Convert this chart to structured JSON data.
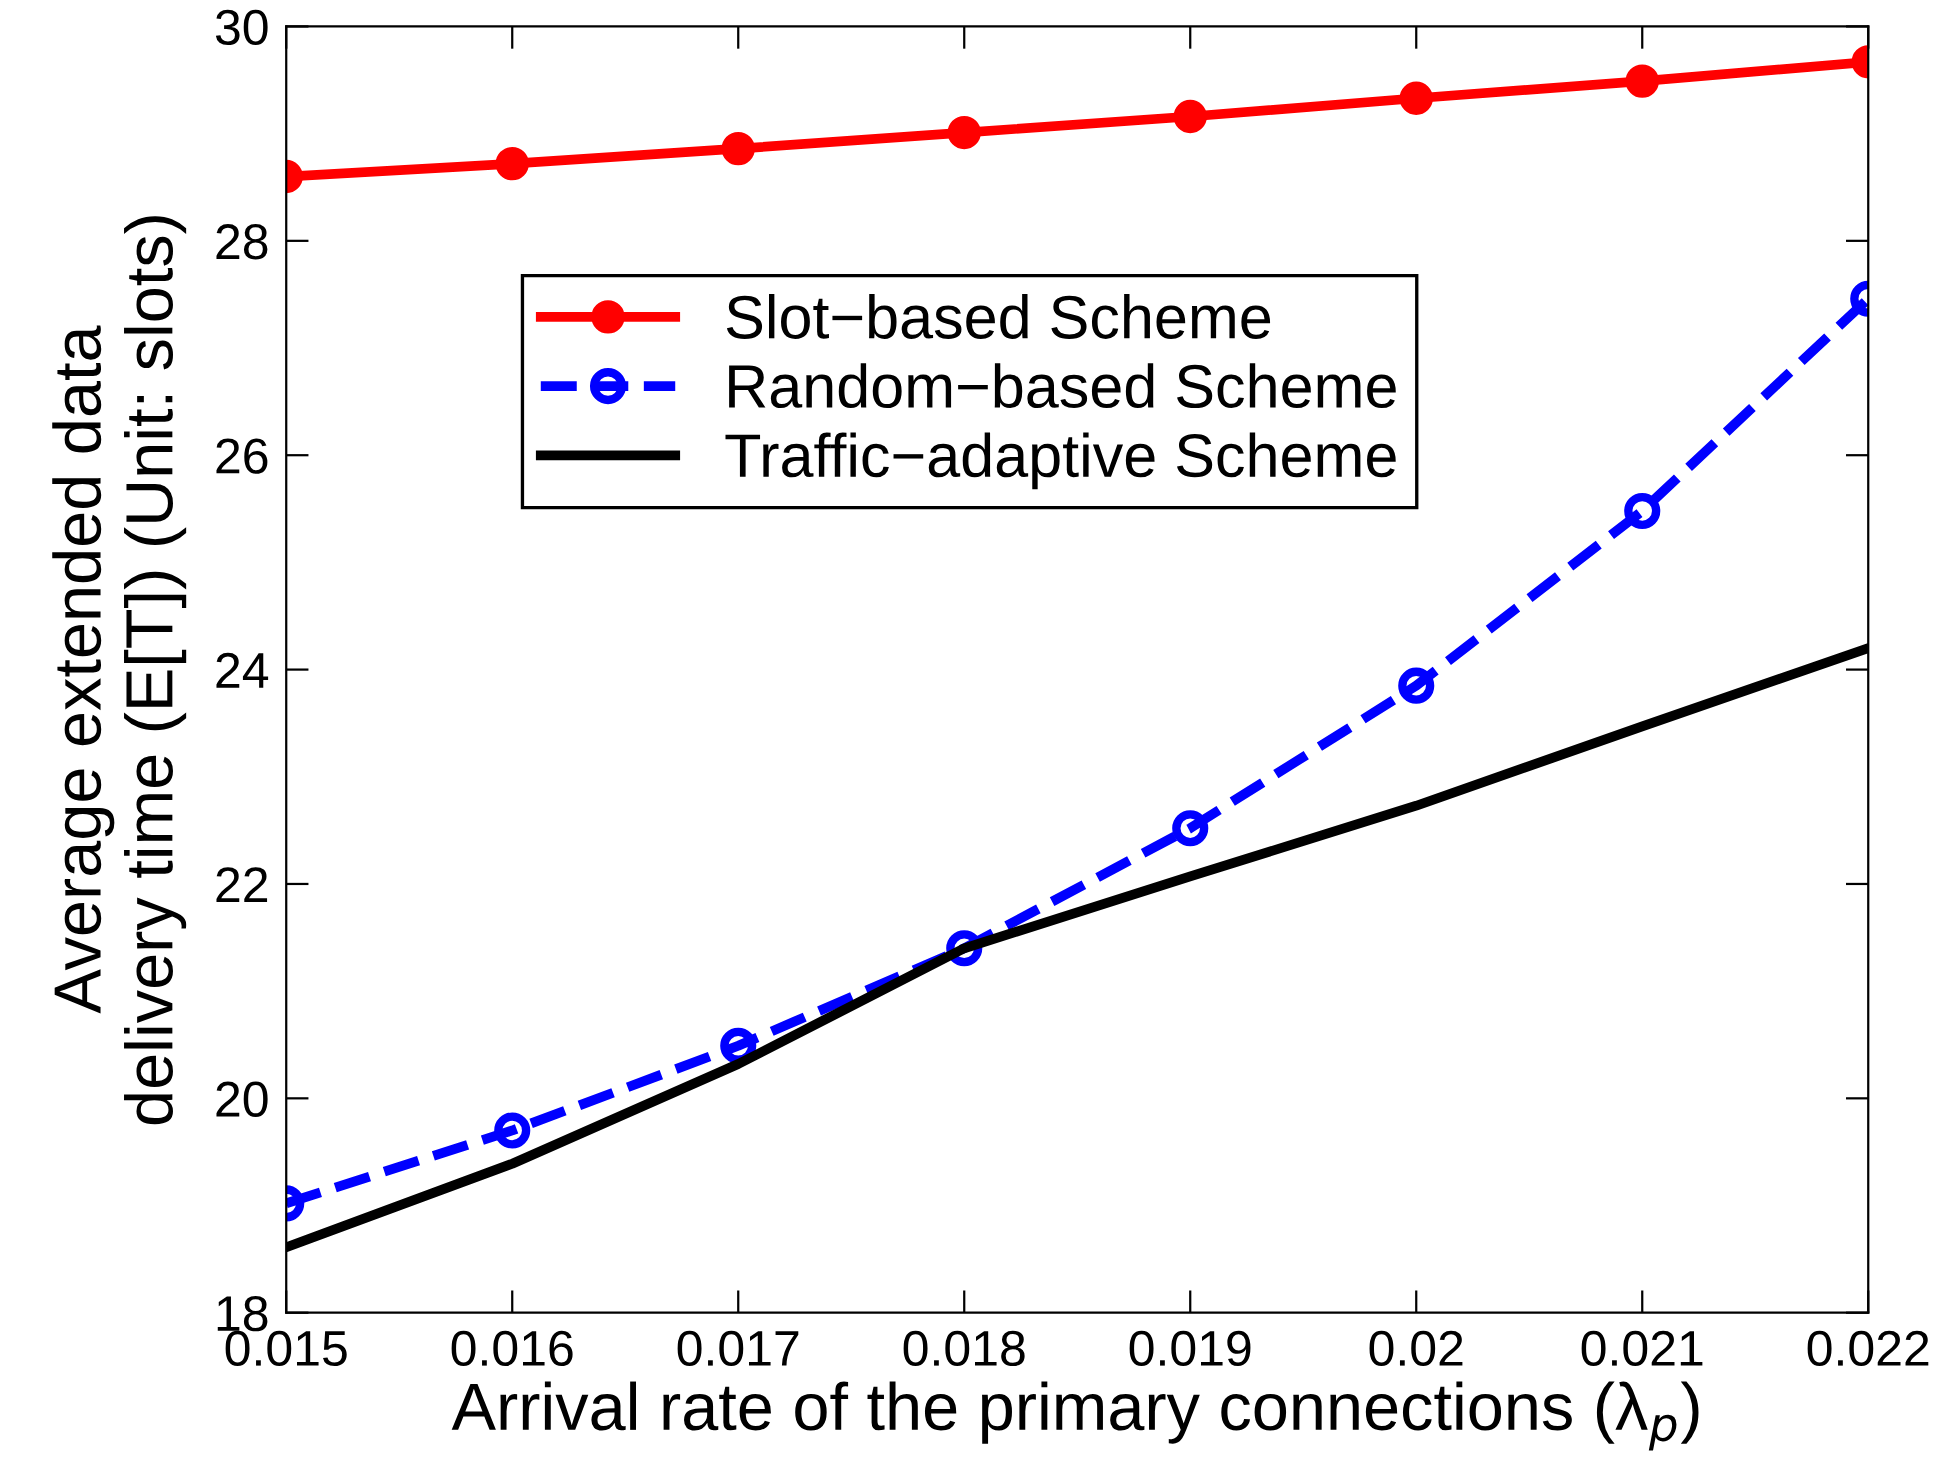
{
  "chart_data": {
    "type": "line",
    "xlabel": "Arrival rate of the primary connections (λ$_{p}$)",
    "ylabel": "Average extended data\ndelivery time (E[T]) (Unit: slots)",
    "x": [
      0.015,
      0.016,
      0.017,
      0.018,
      0.019,
      0.02,
      0.021,
      0.022
    ],
    "series": [
      {
        "name": "Slot−based Scheme",
        "color": "#ff0000",
        "marker": "circle",
        "line_style": "solid",
        "values": [
          28.6,
          28.72,
          28.86,
          29.01,
          29.16,
          29.33,
          29.49,
          29.67
        ]
      },
      {
        "name": "Random−based Scheme",
        "color": "#0000ff",
        "marker": "circle",
        "line_style": "dashed",
        "values": [
          19.02,
          19.7,
          20.49,
          21.4,
          22.52,
          23.85,
          25.48,
          27.46
        ]
      },
      {
        "name": "Traffic−adaptive Scheme",
        "color": "#000000",
        "marker": "none",
        "line_style": "solid",
        "values": [
          18.61,
          19.39,
          20.32,
          21.4,
          22.07,
          22.73,
          23.47,
          24.2
        ]
      }
    ],
    "xlim": [
      0.015,
      0.022
    ],
    "xticks": [
      0.015,
      0.016,
      0.017,
      0.018,
      0.019,
      0.02,
      0.021,
      0.022
    ],
    "ylim": [
      18,
      30
    ],
    "yticks": [
      18,
      20,
      22,
      24,
      26,
      28,
      30
    ],
    "grid": false,
    "legend": "top left"
  }
}
